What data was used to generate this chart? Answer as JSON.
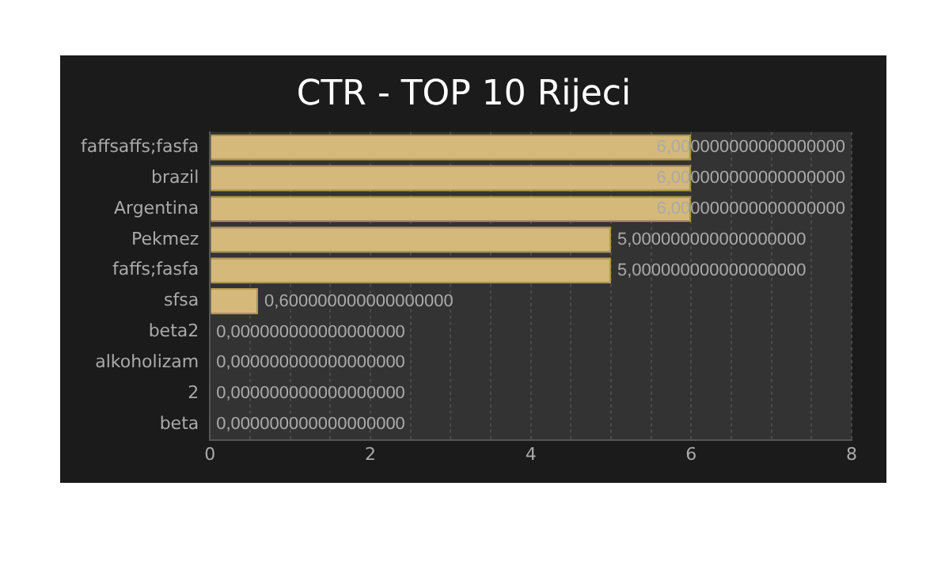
{
  "chart_data": {
    "type": "bar",
    "orientation": "horizontal",
    "title": "CTR - TOP 10 Rijeci",
    "categories": [
      "faffsaffs;fasfa",
      "brazil",
      "Argentina",
      "Pekmez",
      "faffs;fasfa",
      "sfsa",
      "beta2",
      "alkoholizam",
      "2",
      "beta"
    ],
    "values": [
      6,
      6,
      6,
      5,
      5,
      0.6,
      0,
      0,
      0,
      0
    ],
    "value_labels": [
      "6,000000000000000000",
      "6,000000000000000000",
      "6,000000000000000000",
      "5,000000000000000000",
      "5,000000000000000000",
      "0,600000000000000000",
      "0,000000000000000000",
      "0,000000000000000000",
      "0,000000000000000000",
      "0,000000000000000000"
    ],
    "color": "#d4b97a",
    "xlim": [
      0,
      8
    ],
    "xticks": [
      0,
      {
        "value": 0.5,
        "label": null
      },
      {
        "value": 1,
        "label": null
      },
      {
        "value": 1.5,
        "label": null
      },
      2,
      {
        "value": 2.5,
        "label": null
      },
      {
        "value": 3,
        "label": null
      },
      {
        "value": 3.5,
        "label": null
      },
      4,
      {
        "value": 4.5,
        "label": null
      },
      {
        "value": 5,
        "label": null
      },
      {
        "value": 5.5,
        "label": null
      },
      6,
      {
        "value": 6.5,
        "label": null
      },
      {
        "value": 7,
        "label": null
      },
      {
        "value": 7.5,
        "label": null
      },
      8
    ],
    "grid": "x",
    "legend": false
  }
}
